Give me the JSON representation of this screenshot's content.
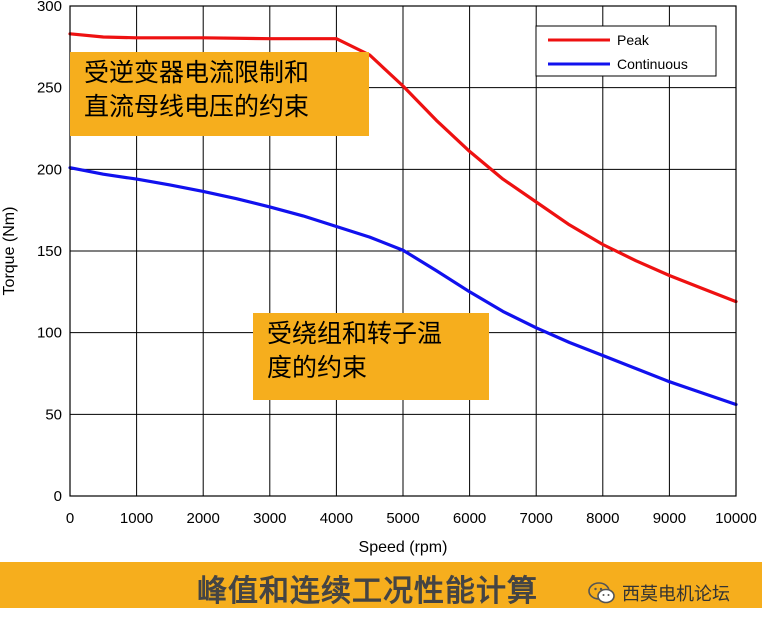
{
  "chart_data": {
    "type": "line",
    "title": "",
    "xlabel": "Speed (rpm)",
    "ylabel": "Torque (Nm)",
    "xlim": [
      0,
      10000
    ],
    "ylim": [
      0,
      300
    ],
    "xticks": [
      0,
      1000,
      2000,
      3000,
      4000,
      5000,
      6000,
      7000,
      8000,
      9000,
      10000
    ],
    "yticks": [
      0,
      50,
      100,
      150,
      200,
      250,
      300
    ],
    "grid": true,
    "legend_position": "top-right",
    "series": [
      {
        "name": "Peak",
        "color": "#ee1111",
        "x": [
          0,
          500,
          1000,
          2000,
          3000,
          4000,
          4500,
          5000,
          5500,
          6000,
          6500,
          7000,
          7500,
          8000,
          8500,
          9000,
          9500,
          10000
        ],
        "y": [
          283,
          281,
          280.5,
          280.5,
          280,
          280,
          270,
          251,
          230,
          211,
          194,
          180,
          166,
          154,
          144,
          135,
          127,
          119
        ]
      },
      {
        "name": "Continuous",
        "color": "#1111ee",
        "x": [
          0,
          500,
          1000,
          1500,
          2000,
          2500,
          3000,
          3500,
          4000,
          4500,
          5000,
          5500,
          6000,
          6500,
          7000,
          7500,
          8000,
          8500,
          9000,
          9500,
          10000
        ],
        "y": [
          201,
          197,
          194,
          190.5,
          186.5,
          182,
          177,
          171.5,
          165,
          158.5,
          150.5,
          138,
          125,
          113,
          103,
          94,
          86,
          78,
          70,
          63,
          56
        ]
      }
    ]
  },
  "annotations": {
    "top_line1": "受逆变器电流限制和",
    "top_line2": "直流母线电压的约束",
    "bottom_line1": "受绕组和转子温",
    "bottom_line2": "度的约束"
  },
  "footer": {
    "title": "峰值和连续工况性能计算",
    "watermark": "西莫电机论坛"
  }
}
